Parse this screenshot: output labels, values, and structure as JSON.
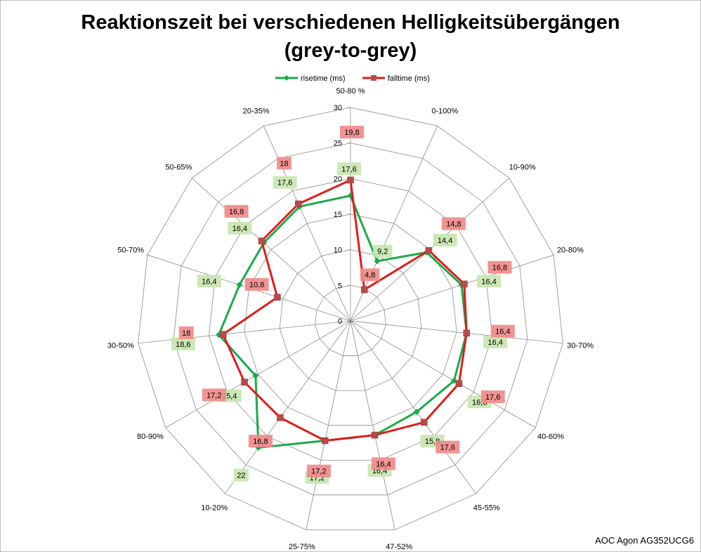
{
  "chart_data": {
    "type": "radar",
    "title_line1": "Reaktionszeit bei verschiedenen Helligkeitsübergängen",
    "title_line2": "(grey-to-grey)",
    "categories": [
      "50-80 %",
      "0-100%",
      "10-90%",
      "20-80%",
      "30-70%",
      "40-60%",
      "45-55%",
      "47-52%",
      "25-75%",
      "10-20%",
      "80-90%",
      "30-50%",
      "50-70%",
      "50-65%",
      "20-35%"
    ],
    "rlim": [
      0,
      30
    ],
    "ticks": [
      0,
      5,
      10,
      15,
      20,
      25,
      30
    ],
    "tick_labels": [
      "0",
      "5",
      "10",
      "15",
      "20",
      "25",
      "30"
    ],
    "grid": true,
    "legend_position": "top",
    "series": [
      {
        "name": "risetime (ms)",
        "color": "#1aaa4a",
        "label_bg": "#c8e6b0",
        "marker": "diamond",
        "values": [
          17.6,
          9.2,
          14.4,
          16.4,
          16.4,
          16.8,
          15.8,
          16.4,
          17.2,
          22,
          15.4,
          18.6,
          16.4,
          16.4,
          17.6
        ],
        "labels": [
          "17,6",
          "9,2",
          "14,4",
          "16,4",
          "16,4",
          "16,8",
          "15,8",
          "16,4",
          "17,2",
          "22",
          "15,4",
          "18,6",
          "16,4",
          "16,4",
          "17,6"
        ]
      },
      {
        "name": "falltime (ms)",
        "color": "#e01c1c",
        "label_bg": "#f08a8a",
        "marker": "square",
        "values": [
          19.8,
          4.8,
          14.8,
          16.8,
          16.4,
          17.6,
          17.6,
          16.4,
          17.2,
          16.8,
          17.2,
          18,
          10.8,
          16.8,
          18
        ],
        "labels": [
          "19,8",
          "4,8",
          "14,8",
          "16,8",
          "16,4",
          "17,6",
          "17,6",
          "16,4",
          "17,2",
          "16,8",
          "17,2",
          "18",
          "10,8",
          "16,8",
          "18"
        ]
      }
    ]
  },
  "credit": "AOC Agon AG352UCG6"
}
